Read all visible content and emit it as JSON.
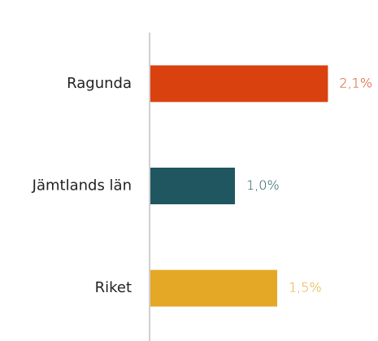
{
  "chart_data": {
    "type": "barh",
    "categories": [
      "Ragunda",
      "Jämtlands län",
      "Riket"
    ],
    "values": [
      2.1,
      1.0,
      1.5
    ],
    "value_labels": [
      "2,1%",
      "1,0%",
      "1,5%"
    ],
    "colors": [
      "#d9410f",
      "#1f5660",
      "#e4a826"
    ],
    "xlim": [
      0,
      2.5
    ]
  }
}
